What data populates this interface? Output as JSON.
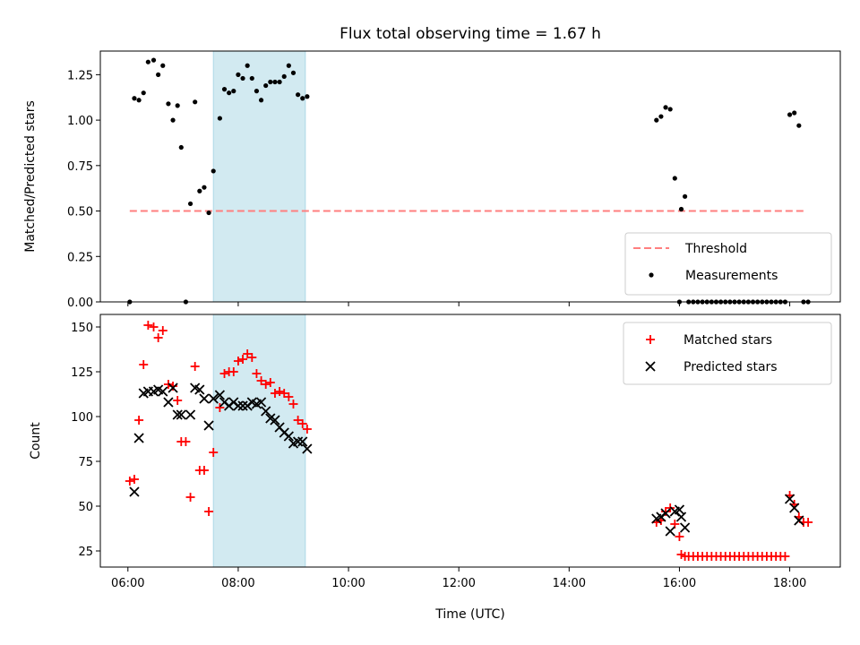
{
  "title": "Flux total observing time = 1.67 h",
  "colors": {
    "threshold": "#ff7f7f",
    "measurement": "#000000",
    "matched": "#ff0000",
    "predicted": "#000000",
    "highlight": "#add8e6"
  },
  "chart_data": [
    {
      "type": "scatter",
      "panel": "top",
      "ylabel": "Matched/Predicted stars",
      "xlim": [
        "05:30",
        "18:55"
      ],
      "ylim": [
        0,
        1.38
      ],
      "yticks": [
        0.0,
        0.25,
        0.5,
        0.75,
        1.0,
        1.25
      ],
      "ytick_labels": [
        "0.00",
        "0.25",
        "0.50",
        "0.75",
        "1.00",
        "1.25"
      ],
      "highlight_span": [
        "07:33",
        "09:13"
      ],
      "legend": {
        "position": "lower-right",
        "entries": [
          "Threshold",
          "Measurements"
        ]
      },
      "series": [
        {
          "name": "Threshold",
          "style": "dashed-line",
          "points": [
            [
              "06:02",
              0.5
            ],
            [
              "18:18",
              0.5
            ]
          ]
        },
        {
          "name": "Measurements",
          "style": "dot",
          "points": [
            [
              "06:02",
              0.0
            ],
            [
              "06:07",
              1.12
            ],
            [
              "06:12",
              1.11
            ],
            [
              "06:17",
              1.15
            ],
            [
              "06:22",
              1.32
            ],
            [
              "06:28",
              1.33
            ],
            [
              "06:33",
              1.25
            ],
            [
              "06:38",
              1.3
            ],
            [
              "06:44",
              1.09
            ],
            [
              "06:49",
              1.0
            ],
            [
              "06:54",
              1.08
            ],
            [
              "06:58",
              0.85
            ],
            [
              "07:03",
              0.0
            ],
            [
              "07:08",
              0.54
            ],
            [
              "07:13",
              1.1
            ],
            [
              "07:18",
              0.61
            ],
            [
              "07:23",
              0.63
            ],
            [
              "07:28",
              0.49
            ],
            [
              "07:33",
              0.72
            ],
            [
              "07:40",
              1.01
            ],
            [
              "07:45",
              1.17
            ],
            [
              "07:50",
              1.15
            ],
            [
              "07:55",
              1.16
            ],
            [
              "08:00",
              1.25
            ],
            [
              "08:05",
              1.23
            ],
            [
              "08:10",
              1.3
            ],
            [
              "08:15",
              1.23
            ],
            [
              "08:20",
              1.16
            ],
            [
              "08:25",
              1.11
            ],
            [
              "08:30",
              1.19
            ],
            [
              "08:35",
              1.21
            ],
            [
              "08:40",
              1.21
            ],
            [
              "08:45",
              1.21
            ],
            [
              "08:50",
              1.24
            ],
            [
              "08:55",
              1.3
            ],
            [
              "09:00",
              1.26
            ],
            [
              "09:05",
              1.14
            ],
            [
              "09:10",
              1.12
            ],
            [
              "09:15",
              1.13
            ],
            [
              "15:35",
              1.0
            ],
            [
              "15:40",
              1.02
            ],
            [
              "15:45",
              1.07
            ],
            [
              "15:50",
              1.06
            ],
            [
              "15:55",
              0.68
            ],
            [
              "16:00",
              0.0
            ],
            [
              "16:02",
              0.51
            ],
            [
              "16:06",
              0.58
            ],
            [
              "16:10",
              0.0
            ],
            [
              "16:15",
              0.0
            ],
            [
              "16:20",
              0.0
            ],
            [
              "16:25",
              0.0
            ],
            [
              "16:30",
              0.0
            ],
            [
              "16:35",
              0.0
            ],
            [
              "16:40",
              0.0
            ],
            [
              "16:45",
              0.0
            ],
            [
              "16:50",
              0.0
            ],
            [
              "16:55",
              0.0
            ],
            [
              "17:00",
              0.0
            ],
            [
              "17:05",
              0.0
            ],
            [
              "17:10",
              0.0
            ],
            [
              "17:15",
              0.0
            ],
            [
              "17:20",
              0.0
            ],
            [
              "17:25",
              0.0
            ],
            [
              "17:30",
              0.0
            ],
            [
              "17:35",
              0.0
            ],
            [
              "17:40",
              0.0
            ],
            [
              "17:45",
              0.0
            ],
            [
              "17:50",
              0.0
            ],
            [
              "17:55",
              0.0
            ],
            [
              "18:00",
              1.03
            ],
            [
              "18:05",
              1.04
            ],
            [
              "18:10",
              0.97
            ],
            [
              "18:15",
              0.0
            ],
            [
              "18:20",
              0.0
            ]
          ]
        }
      ]
    },
    {
      "type": "scatter",
      "panel": "bottom",
      "xlabel": "Time (UTC)",
      "ylabel": "Count",
      "xlim": [
        "05:30",
        "18:55"
      ],
      "ylim": [
        16,
        157
      ],
      "yticks": [
        25,
        50,
        75,
        100,
        125,
        150
      ],
      "ytick_labels": [
        "25",
        "50",
        "75",
        "100",
        "125",
        "150"
      ],
      "xticks": [
        "06:00",
        "08:00",
        "10:00",
        "12:00",
        "14:00",
        "16:00",
        "18:00"
      ],
      "xtick_labels": [
        "06:00",
        "08:00",
        "10:00",
        "12:00",
        "14:00",
        "16:00",
        "18:00"
      ],
      "highlight_span": [
        "07:33",
        "09:13"
      ],
      "legend": {
        "position": "upper-right",
        "entries": [
          "Matched stars",
          "Predicted stars"
        ]
      },
      "series": [
        {
          "name": "Matched stars",
          "style": "plus",
          "points": [
            [
              "06:02",
              64
            ],
            [
              "06:07",
              65
            ],
            [
              "06:12",
              98
            ],
            [
              "06:17",
              129
            ],
            [
              "06:22",
              151
            ],
            [
              "06:28",
              150
            ],
            [
              "06:33",
              144
            ],
            [
              "06:38",
              148
            ],
            [
              "06:44",
              118
            ],
            [
              "06:49",
              117
            ],
            [
              "06:54",
              109
            ],
            [
              "06:58",
              86
            ],
            [
              "07:03",
              86
            ],
            [
              "07:08",
              55
            ],
            [
              "07:13",
              128
            ],
            [
              "07:18",
              70
            ],
            [
              "07:23",
              70
            ],
            [
              "07:28",
              47
            ],
            [
              "07:33",
              80
            ],
            [
              "07:40",
              105
            ],
            [
              "07:45",
              124
            ],
            [
              "07:50",
              125
            ],
            [
              "07:55",
              125
            ],
            [
              "08:00",
              131
            ],
            [
              "08:05",
              132
            ],
            [
              "08:10",
              135
            ],
            [
              "08:15",
              133
            ],
            [
              "08:20",
              124
            ],
            [
              "08:25",
              120
            ],
            [
              "08:30",
              118
            ],
            [
              "08:35",
              119
            ],
            [
              "08:40",
              113
            ],
            [
              "08:45",
              114
            ],
            [
              "08:50",
              113
            ],
            [
              "08:55",
              111
            ],
            [
              "09:00",
              107
            ],
            [
              "09:05",
              98
            ],
            [
              "09:10",
              96
            ],
            [
              "09:15",
              93
            ],
            [
              "15:35",
              41
            ],
            [
              "15:40",
              42
            ],
            [
              "15:45",
              47
            ],
            [
              "15:50",
              49
            ],
            [
              "15:55",
              40
            ],
            [
              "16:00",
              33
            ],
            [
              "16:02",
              23
            ],
            [
              "16:06",
              22
            ],
            [
              "16:10",
              22
            ],
            [
              "16:15",
              22
            ],
            [
              "16:20",
              22
            ],
            [
              "16:25",
              22
            ],
            [
              "16:30",
              22
            ],
            [
              "16:35",
              22
            ],
            [
              "16:40",
              22
            ],
            [
              "16:45",
              22
            ],
            [
              "16:50",
              22
            ],
            [
              "16:55",
              22
            ],
            [
              "17:00",
              22
            ],
            [
              "17:05",
              22
            ],
            [
              "17:10",
              22
            ],
            [
              "17:15",
              22
            ],
            [
              "17:20",
              22
            ],
            [
              "17:25",
              22
            ],
            [
              "17:30",
              22
            ],
            [
              "17:35",
              22
            ],
            [
              "17:40",
              22
            ],
            [
              "17:45",
              22
            ],
            [
              "17:50",
              22
            ],
            [
              "17:55",
              22
            ],
            [
              "18:00",
              56
            ],
            [
              "18:05",
              51
            ],
            [
              "18:10",
              44
            ],
            [
              "18:15",
              41
            ],
            [
              "18:20",
              41
            ]
          ]
        },
        {
          "name": "Predicted stars",
          "style": "x",
          "points": [
            [
              "06:07",
              58
            ],
            [
              "06:12",
              88
            ],
            [
              "06:17",
              113
            ],
            [
              "06:22",
              114
            ],
            [
              "06:28",
              114
            ],
            [
              "06:33",
              115
            ],
            [
              "06:38",
              114
            ],
            [
              "06:44",
              108
            ],
            [
              "06:49",
              116
            ],
            [
              "06:54",
              101
            ],
            [
              "06:58",
              101
            ],
            [
              "07:08",
              101
            ],
            [
              "07:13",
              116
            ],
            [
              "07:18",
              115
            ],
            [
              "07:23",
              110
            ],
            [
              "07:28",
              95
            ],
            [
              "07:33",
              110
            ],
            [
              "07:40",
              112
            ],
            [
              "07:45",
              108
            ],
            [
              "07:50",
              106
            ],
            [
              "07:55",
              108
            ],
            [
              "08:00",
              106
            ],
            [
              "08:05",
              106
            ],
            [
              "08:10",
              106
            ],
            [
              "08:15",
              108
            ],
            [
              "08:20",
              107
            ],
            [
              "08:25",
              108
            ],
            [
              "08:30",
              103
            ],
            [
              "08:35",
              99
            ],
            [
              "08:40",
              98
            ],
            [
              "08:45",
              94
            ],
            [
              "08:50",
              91
            ],
            [
              "08:55",
              89
            ],
            [
              "09:00",
              85
            ],
            [
              "09:05",
              86
            ],
            [
              "09:10",
              86
            ],
            [
              "09:15",
              82
            ],
            [
              "15:35",
              43
            ],
            [
              "15:40",
              44
            ],
            [
              "15:45",
              46
            ],
            [
              "15:50",
              36
            ],
            [
              "15:55",
              47
            ],
            [
              "16:00",
              48
            ],
            [
              "16:02",
              44
            ],
            [
              "16:06",
              38
            ],
            [
              "18:00",
              54
            ],
            [
              "18:05",
              49
            ],
            [
              "18:10",
              42
            ]
          ]
        }
      ]
    }
  ]
}
